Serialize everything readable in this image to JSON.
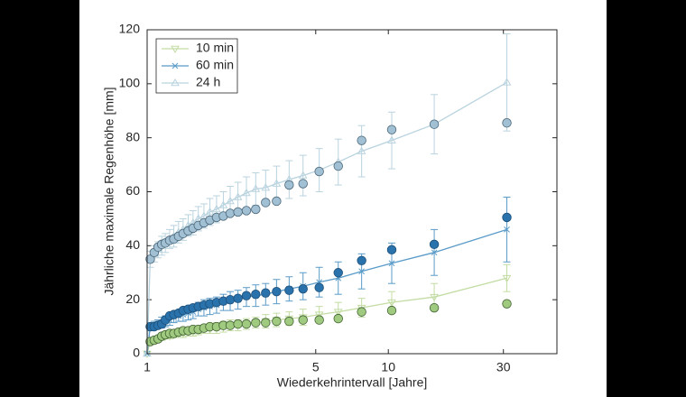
{
  "chart_data": {
    "type": "line",
    "xlabel": "Wiederkehrintervall [Jahre]",
    "ylabel": "Jährliche maximale Regenhöhe [mm]",
    "xscale": "log",
    "xlim": [
      1,
      50
    ],
    "ylim": [
      0,
      120
    ],
    "xticks": [
      1,
      5,
      10,
      30
    ],
    "yticks": [
      0,
      20,
      40,
      60,
      80,
      100,
      120
    ],
    "legend": "upper left",
    "x": [
      1,
      1.03,
      1.07,
      1.11,
      1.15,
      1.19,
      1.24,
      1.29,
      1.35,
      1.41,
      1.48,
      1.55,
      1.63,
      1.72,
      1.82,
      1.94,
      2.07,
      2.21,
      2.38,
      2.58,
      2.82,
      3.1,
      3.44,
      3.88,
      4.43,
      5.17,
      6.2,
      7.75,
      10.33,
      15.5,
      31
    ],
    "series": [
      {
        "name": "10 min",
        "color": "#c3dca3",
        "marker": "tri-down",
        "values": [
          0,
          4.5,
          5,
          5.5,
          6,
          6.5,
          6.5,
          7,
          7.5,
          7.5,
          8,
          8,
          8.5,
          9,
          9,
          9.5,
          10,
          10.5,
          10.5,
          11,
          11.5,
          12,
          12.5,
          13,
          13.5,
          14.5,
          15.5,
          17,
          19,
          21,
          28
        ],
        "errors": [
          0,
          1,
          1,
          1,
          1,
          1,
          1,
          1,
          1.5,
          1.5,
          1.5,
          1.5,
          1.5,
          1.5,
          1.5,
          2,
          2,
          2,
          2,
          2,
          2,
          2.5,
          2.5,
          2.5,
          3,
          3,
          3.5,
          3.5,
          4,
          5,
          5
        ]
      },
      {
        "name": "60 min",
        "color": "#5a9bc8",
        "marker": "cross",
        "values": [
          0,
          10,
          10.5,
          11,
          11.5,
          12,
          12.5,
          13.5,
          14,
          14.5,
          15,
          15.5,
          16.5,
          17,
          17.5,
          18,
          19,
          19.5,
          20,
          21,
          21.5,
          22,
          23,
          24,
          25,
          26.5,
          28,
          30.5,
          33.5,
          37.5,
          46
        ],
        "errors": [
          0,
          1.5,
          1.5,
          1.5,
          2,
          2,
          2,
          2,
          2,
          2.5,
          2.5,
          2.5,
          2.5,
          3,
          3,
          3,
          3,
          3.5,
          3.5,
          3.5,
          4,
          4,
          4.5,
          4.5,
          5,
          5.5,
          6,
          6.5,
          7.5,
          8.5,
          12
        ]
      },
      {
        "name": "24 h",
        "color": "#b9d3df",
        "marker": "tri-up",
        "values": [
          0,
          35,
          37,
          38.5,
          40,
          41,
          42.5,
          43.5,
          45,
          46,
          47.5,
          48.5,
          50,
          51,
          52.5,
          53.5,
          55,
          56.5,
          58,
          59.5,
          61,
          61.5,
          63,
          64.5,
          66,
          68,
          71,
          75,
          79,
          85,
          100.5
        ],
        "errors": [
          0,
          3,
          3,
          3,
          3.5,
          3.5,
          3.5,
          4,
          4,
          4,
          4,
          4.5,
          4.5,
          4.5,
          5,
          5,
          5,
          5.5,
          5.5,
          6,
          6,
          6.5,
          6.5,
          7,
          7.5,
          8,
          8.5,
          9.5,
          10.5,
          11,
          18
        ]
      }
    ],
    "observed": {
      "x": [
        1.03,
        1.07,
        1.11,
        1.15,
        1.19,
        1.24,
        1.29,
        1.35,
        1.41,
        1.48,
        1.55,
        1.63,
        1.72,
        1.82,
        1.94,
        2.07,
        2.21,
        2.38,
        2.58,
        2.82,
        3.1,
        3.44,
        3.88,
        4.43,
        5.17,
        6.2,
        7.75,
        10.33,
        15.5,
        31
      ],
      "series": [
        {
          "color": "#9fca7f",
          "edgecolor": "#3f5f30",
          "values": [
            4.5,
            5,
            5.5,
            6.5,
            7,
            7.5,
            7.5,
            8,
            8.5,
            8.5,
            9,
            9,
            9.5,
            10,
            10,
            10.5,
            10.5,
            11,
            11,
            11.5,
            11.5,
            12,
            12,
            12.5,
            12.5,
            13,
            15.5,
            16,
            17,
            18.5
          ]
        },
        {
          "color": "#2a72ab",
          "edgecolor": "#1d4e78",
          "values": [
            10,
            10,
            10.5,
            11,
            12.5,
            14,
            14.5,
            15,
            16,
            16.5,
            17,
            17.5,
            18,
            18.5,
            19,
            19.5,
            20,
            20.5,
            21.5,
            22,
            22.5,
            23,
            23.5,
            24,
            24.5,
            30,
            34.5,
            38.5,
            40.5,
            50.5
          ]
        },
        {
          "color": "#a2c0d4",
          "edgecolor": "#4a6678",
          "values": [
            35,
            37.5,
            39.5,
            40.5,
            41,
            42,
            42.5,
            43.5,
            44.5,
            45.5,
            46.5,
            47.5,
            48.5,
            49.5,
            50.5,
            51,
            52,
            52.5,
            53,
            53.5,
            56,
            56.5,
            62.5,
            63,
            67.5,
            69.5,
            79,
            83,
            85,
            85.5
          ]
        }
      ]
    }
  }
}
